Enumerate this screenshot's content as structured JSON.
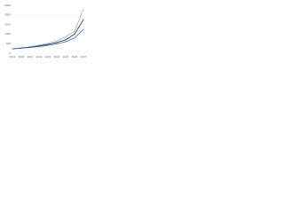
{
  "chart_data": {
    "type": "line",
    "categories": [
      "2019",
      "2020",
      "2021",
      "2022",
      "2023",
      "2024",
      "2025",
      "2026",
      "2027"
    ],
    "series": [
      {
        "color": "#b0b0b0",
        "values": [
          230,
          280,
          340,
          420,
          520,
          650,
          850,
          1150,
          2300
        ]
      },
      {
        "color": "#1b2a4a",
        "values": [
          230,
          270,
          320,
          380,
          460,
          560,
          700,
          1000,
          1750
        ]
      },
      {
        "color": "#2f6fc4",
        "values": [
          230,
          260,
          300,
          350,
          410,
          490,
          600,
          800,
          1250
        ]
      }
    ],
    "ylim": [
      0,
      2500
    ],
    "yticks": [
      0,
      500,
      1000,
      1500,
      2000,
      2500
    ],
    "grid": true
  }
}
